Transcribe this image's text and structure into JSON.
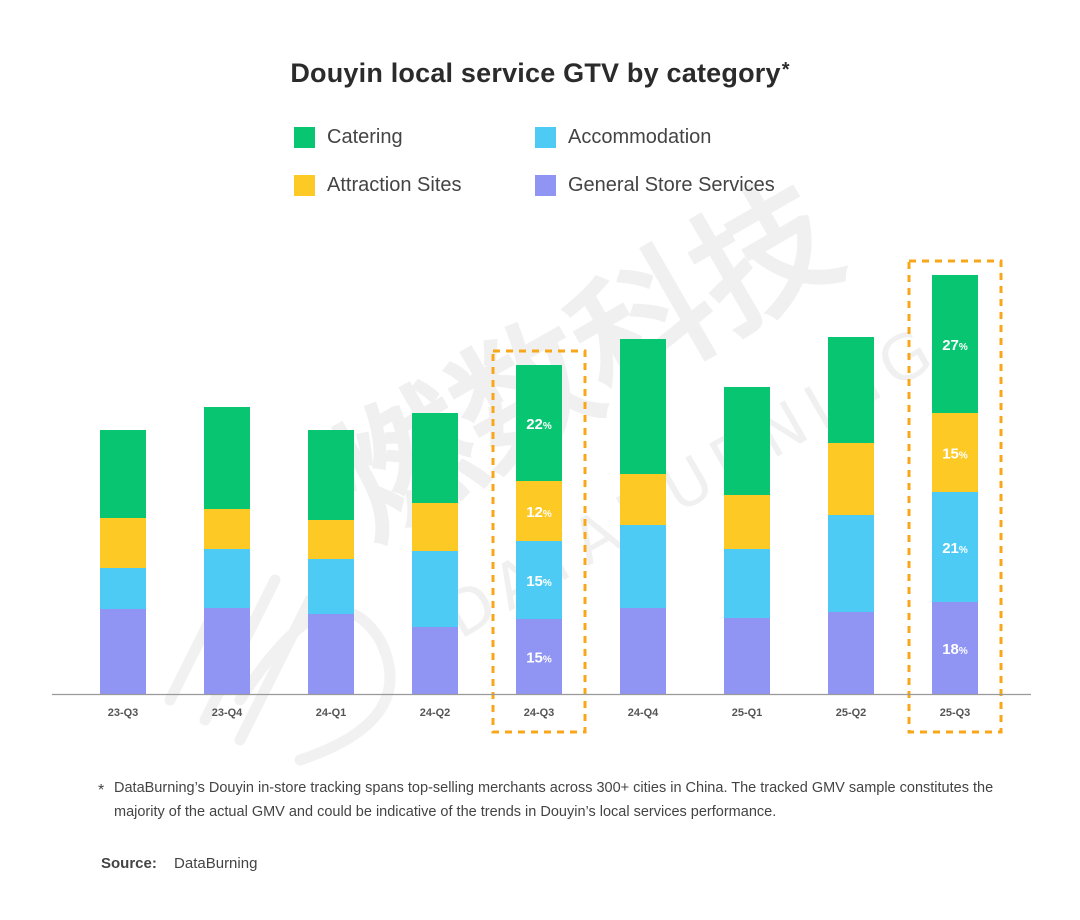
{
  "chart_data": {
    "type": "bar",
    "stacked": true,
    "title": "Douyin local service GTV by category",
    "title_mark": "*",
    "categories": [
      "23-Q3",
      "23-Q4",
      "24-Q1",
      "24-Q2",
      "24-Q3",
      "24-Q4",
      "25-Q1",
      "25-Q2",
      "25-Q3"
    ],
    "series": [
      {
        "name": "General Store Services",
        "color": "#9094f3",
        "values": [
          85,
          86,
          80,
          67,
          75,
          86,
          76,
          82,
          92
        ]
      },
      {
        "name": "Accommodation",
        "color": "#4dcbf5",
        "values": [
          41,
          59,
          55,
          76,
          78,
          83,
          69,
          97,
          110
        ]
      },
      {
        "name": "Attraction Sites",
        "color": "#fdc925",
        "values": [
          50,
          40,
          39,
          48,
          60,
          51,
          54,
          72,
          79
        ]
      },
      {
        "name": "Catering",
        "color": "#08c572",
        "values": [
          88,
          102,
          90,
          90,
          116,
          135,
          108,
          106,
          138
        ]
      }
    ],
    "data_labels": [
      {
        "category": "24-Q3",
        "series": "General Store Services",
        "text": "15",
        "unit": "%"
      },
      {
        "category": "24-Q3",
        "series": "Accommodation",
        "text": "15",
        "unit": "%"
      },
      {
        "category": "24-Q3",
        "series": "Attraction Sites",
        "text": "12",
        "unit": "%"
      },
      {
        "category": "24-Q3",
        "series": "Catering",
        "text": "22",
        "unit": "%"
      },
      {
        "category": "25-Q3",
        "series": "General Store Services",
        "text": "18",
        "unit": "%"
      },
      {
        "category": "25-Q3",
        "series": "Accommodation",
        "text": "21",
        "unit": "%"
      },
      {
        "category": "25-Q3",
        "series": "Attraction Sites",
        "text": "15",
        "unit": "%"
      },
      {
        "category": "25-Q3",
        "series": "Catering",
        "text": "27",
        "unit": "%"
      }
    ],
    "highlighted_categories": [
      "24-Q3",
      "25-Q3"
    ],
    "highlight_color": "#f7a717",
    "ylim": [
      0,
      430
    ],
    "xlabel": "",
    "ylabel": "",
    "grid": false,
    "legend": "top-center"
  },
  "legend": [
    {
      "label": "Catering",
      "color": "#08c572"
    },
    {
      "label": "Accommodation",
      "color": "#4dcbf5"
    },
    {
      "label": "Attraction Sites",
      "color": "#fdc925"
    },
    {
      "label": "General Store Services",
      "color": "#9094f3"
    }
  ],
  "watermark": {
    "text_cn": "燃数科技",
    "text_en": "DATABURNING"
  },
  "footnote": {
    "mark": "*",
    "text": "DataBurning’s Douyin in-store tracking spans top-selling merchants across 300+ cities in China. The tracked GMV sample constitutes the majority of the actual GMV and could be indicative of the trends in Douyin’s local services performance."
  },
  "source": {
    "label": "Source:",
    "value": "DataBurning"
  }
}
